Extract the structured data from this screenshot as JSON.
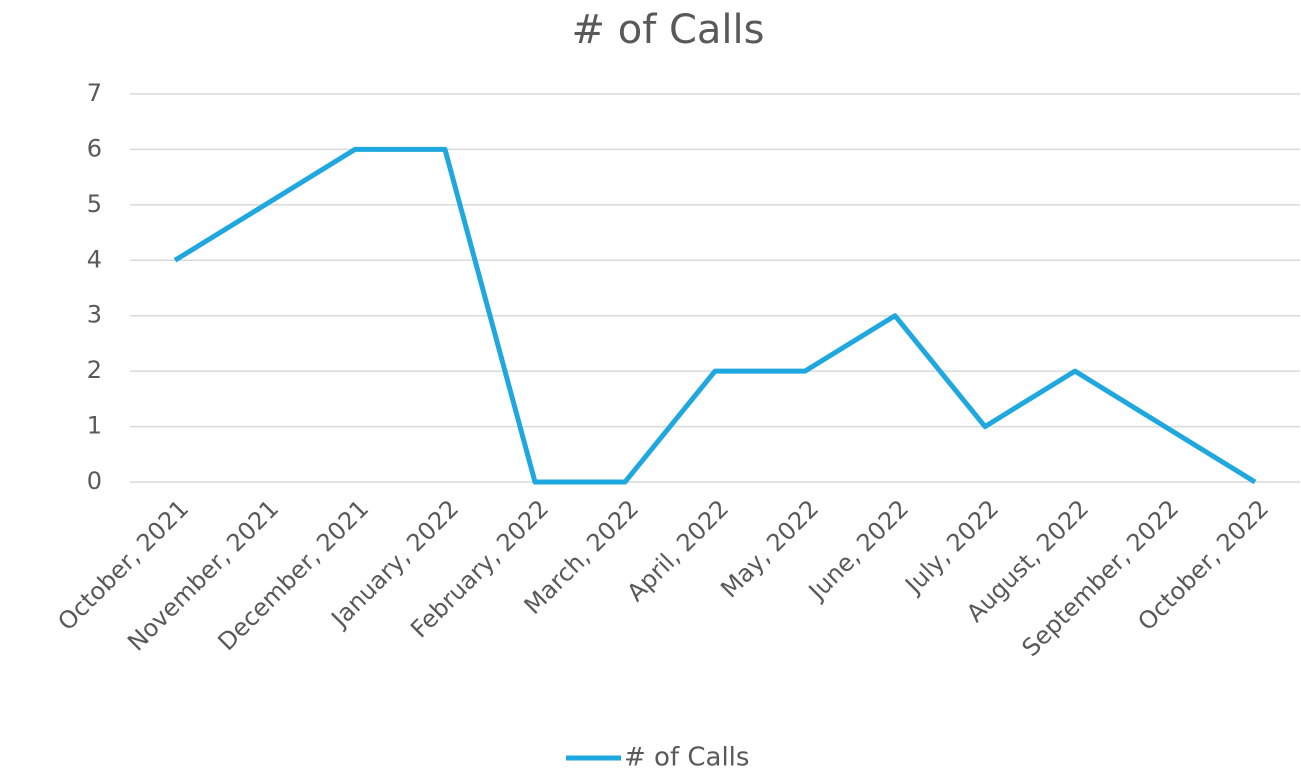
{
  "chart_data": {
    "type": "line",
    "title": "# of Calls",
    "categories": [
      "October, 2021",
      "November, 2021",
      "December, 2021",
      "January, 2022",
      "February, 2022",
      "March, 2022",
      "April, 2022",
      "May, 2022",
      "June, 2022",
      "July, 2022",
      "August, 2022",
      "September, 2022",
      "October, 2022"
    ],
    "series": [
      {
        "name": "# of Calls",
        "color": "#1fa8df",
        "values": [
          4,
          5,
          6,
          6,
          0,
          0,
          2,
          2,
          3,
          1,
          2,
          1,
          0
        ]
      }
    ],
    "ylim": [
      0,
      7
    ],
    "yticks": [
      0,
      1,
      2,
      3,
      4,
      5,
      6,
      7
    ],
    "grid": true,
    "legend": "bottom"
  }
}
